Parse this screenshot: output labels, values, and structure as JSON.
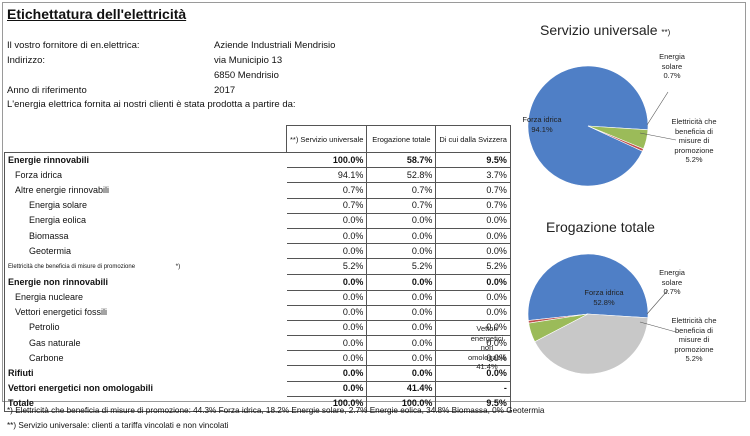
{
  "title": "Etichettatura dell'elettricità",
  "info": [
    {
      "label": "Il vostro fornitore di en.elettrica:",
      "value": "Aziende Industriali Mendrisio"
    },
    {
      "label": "Indirizzo:",
      "value": "via Municipio 13"
    },
    {
      "label": "",
      "value": "6850 Mendrisio"
    },
    {
      "label": "Anno di riferimento",
      "value": "2017"
    }
  ],
  "intro": "L'energia elettrica fornita ai nostri clienti è stata prodotta a partire da:",
  "table": {
    "headers": [
      "**) Servizio universale",
      "Erogazione totale",
      "Di cui dalla Svizzera"
    ],
    "rows": [
      {
        "label": "Energie rinnovabili",
        "values": [
          "100.0%",
          "58.7%",
          "9.5%"
        ]
      },
      {
        "label": "Forza idrica",
        "values": [
          "94.1%",
          "52.8%",
          "3.7%"
        ]
      },
      {
        "label": "Altre energie rinnovabili",
        "values": [
          "0.7%",
          "0.7%",
          "0.7%"
        ]
      },
      {
        "label": "Energia solare",
        "values": [
          "0.7%",
          "0.7%",
          "0.7%"
        ]
      },
      {
        "label": "Energia eolica",
        "values": [
          "0.0%",
          "0.0%",
          "0.0%"
        ]
      },
      {
        "label": "Biomassa",
        "values": [
          "0.0%",
          "0.0%",
          "0.0%"
        ]
      },
      {
        "label": "Geotermia",
        "values": [
          "0.0%",
          "0.0%",
          "0.0%"
        ]
      },
      {
        "label": "Elettricità che beneficia di misure di promozione",
        "marker": "*)",
        "values": [
          "5.2%",
          "5.2%",
          "5.2%"
        ]
      },
      {
        "label": "Energie non rinnovabili",
        "values": [
          "0.0%",
          "0.0%",
          "0.0%"
        ]
      },
      {
        "label": "Energia nucleare",
        "values": [
          "0.0%",
          "0.0%",
          "0.0%"
        ]
      },
      {
        "label": "Vettori energetici fossili",
        "values": [
          "0.0%",
          "0.0%",
          "0.0%"
        ]
      },
      {
        "label": "Petrolio",
        "values": [
          "0.0%",
          "0.0%",
          "0.0%"
        ]
      },
      {
        "label": "Gas naturale",
        "values": [
          "0.0%",
          "0.0%",
          "0.0%"
        ]
      },
      {
        "label": "Carbone",
        "values": [
          "0.0%",
          "0.0%",
          "0.0%"
        ]
      },
      {
        "label": "Rifiuti",
        "values": [
          "0.0%",
          "0.0%",
          "0.0%"
        ]
      },
      {
        "label": "Vettori energetici non omologabili",
        "values": [
          "0.0%",
          "41.4%",
          "-"
        ]
      },
      {
        "label": "Totale",
        "values": [
          "100.0%",
          "100.0%",
          "9.5%"
        ]
      }
    ]
  },
  "notes": [
    "*) Elettricità che beneficia di misure di promozione: 44.3% Forza idrica, 18.2% Energie solare,  2.7% Energie eolica, 34.8% Biomassa, 0% Geotermia",
    "**) Servizio universale: clienti a tariffa vincolati e non vincolati"
  ],
  "colors": {
    "hydro": "#4f7fc6",
    "solar": "#c0504d",
    "promo": "#9bbb59",
    "nonhom": "#c8c8c8"
  },
  "chart_data": [
    {
      "type": "pie",
      "title": "Servizio universale",
      "title_marker": "**)",
      "slices": [
        {
          "label": "Forza idrica",
          "value": 94.1,
          "value_label": "94.1%"
        },
        {
          "label": "Energia solare",
          "value": 0.7,
          "value_label": "0.7%"
        },
        {
          "label": "Elettricità che beneficia di misure di promozione",
          "value": 5.2,
          "value_label": "5.2%"
        }
      ]
    },
    {
      "type": "pie",
      "title": "Erogazione totale",
      "slices": [
        {
          "label": "Forza idrica",
          "value": 52.8,
          "value_label": "52.8%"
        },
        {
          "label": "Energia solare",
          "value": 0.7,
          "value_label": "0.7%"
        },
        {
          "label": "Elettricità che beneficia di misure di promozione",
          "value": 5.2,
          "value_label": "5.2%"
        },
        {
          "label": "Vettori energetici non omologabili",
          "value": 41.4,
          "value_label": "41.4%"
        }
      ]
    }
  ]
}
